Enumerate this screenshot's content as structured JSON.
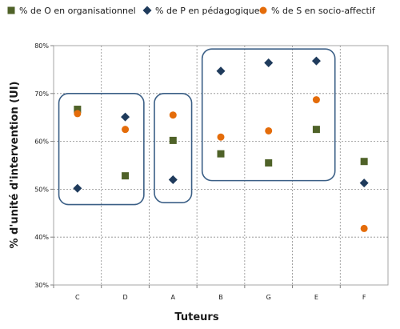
{
  "chart_data": {
    "type": "scatter",
    "title": "",
    "xlabel": "Tuteurs",
    "ylabel": "% d'unité d'intervention (UI)",
    "categories": [
      "C",
      "D",
      "A",
      "B",
      "G",
      "E",
      "F"
    ],
    "ylim": [
      0.3,
      0.8
    ],
    "yticks": [
      "30%",
      "40%",
      "50%",
      "60%",
      "70%",
      "80%"
    ],
    "grid": true,
    "legend_position": "top",
    "series": [
      {
        "name": "% de O en organisationnel",
        "marker": "square",
        "color": "#4f6228",
        "values": [
          0.667,
          0.528,
          0.602,
          0.574,
          0.555,
          0.625,
          0.558
        ]
      },
      {
        "name": "% de P en pédagogique",
        "marker": "diamond",
        "color": "#1f3b5c",
        "values": [
          0.502,
          0.651,
          0.52,
          0.747,
          0.764,
          0.768,
          0.513
        ]
      },
      {
        "name": "% de S en socio-affectif",
        "marker": "circle",
        "color": "#e46c0a",
        "values": [
          0.658,
          0.625,
          0.655,
          0.609,
          0.622,
          0.687,
          0.418
        ]
      }
    ],
    "groups": [
      {
        "categories": [
          "C",
          "D"
        ],
        "range": [
          0.468,
          0.7
        ]
      },
      {
        "categories": [
          "A"
        ],
        "range": [
          0.472,
          0.7
        ]
      },
      {
        "categories": [
          "B",
          "G",
          "E"
        ],
        "range": [
          0.518,
          0.793
        ]
      }
    ]
  }
}
